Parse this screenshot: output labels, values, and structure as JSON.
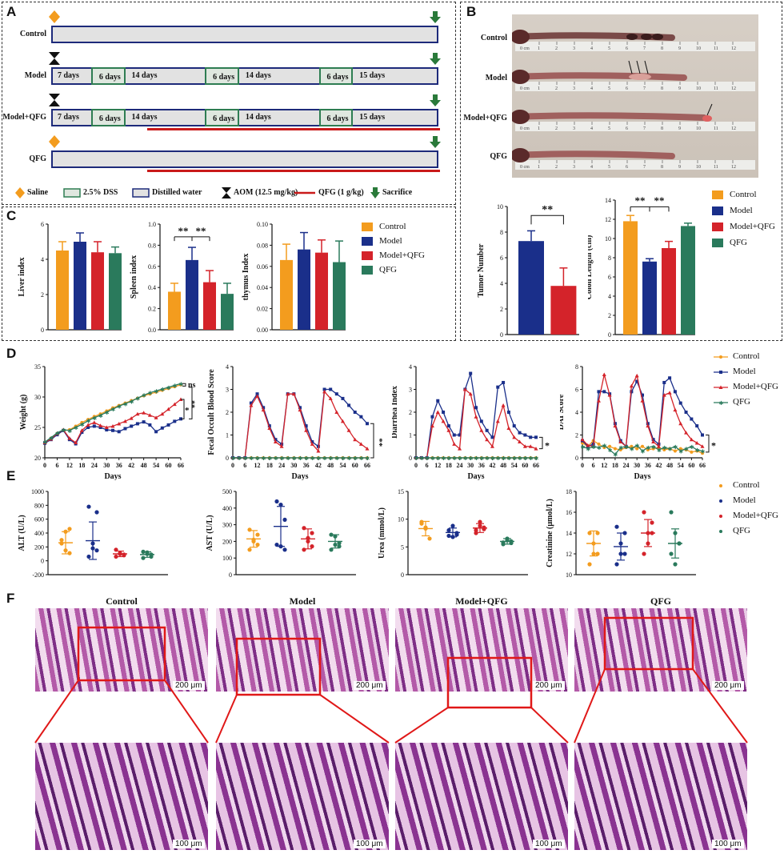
{
  "panels": {
    "A": "A",
    "B": "B",
    "C": "C",
    "D": "D",
    "E": "E",
    "F": "F"
  },
  "panelA": {
    "rows": [
      {
        "label": "Control",
        "segments": []
      },
      {
        "label": "Model",
        "segments": [
          "7 days",
          "6 days",
          "14 days",
          "6 days",
          "14 days",
          "6 days",
          "15 days"
        ]
      },
      {
        "label": "Model+QFG",
        "segments": [
          "7 days",
          "6 days",
          "14 days",
          "6 days",
          "14 days",
          "6 days",
          "15 days"
        ]
      },
      {
        "label": "QFG",
        "segments": []
      }
    ],
    "legend": [
      "Saline",
      "2.5% DSS",
      "Distilled water",
      "AOM (12.5 mg/kg)",
      "QFG (1 g/kg)",
      "Sacrifice"
    ]
  },
  "panelB": {
    "rows": [
      "Control",
      "Model",
      "Model+QFG",
      "QFG"
    ],
    "ruler_start": "0 cm",
    "ruler_ticks": [
      "1",
      "2",
      "3",
      "4",
      "5",
      "6",
      "7",
      "8",
      "9",
      "10",
      "11",
      "12"
    ]
  },
  "colors": {
    "Control": "#f39c1e",
    "Model": "#1a2f8a",
    "Model+QFG": "#d4232a",
    "QFG": "#2a7a5c"
  },
  "groups": [
    "Control",
    "Model",
    "Model+QFG",
    "QFG"
  ],
  "chart_data": [
    {
      "id": "tumor",
      "type": "bar",
      "categories": [
        "Model",
        "Model+QFG"
      ],
      "values": [
        7.3,
        3.8
      ],
      "errors": [
        0.8,
        1.4
      ],
      "ylabel": "Tumor Number",
      "ylim": [
        0,
        10
      ],
      "yticks": [
        0,
        2,
        4,
        6,
        8,
        10
      ],
      "annotations": [
        "**"
      ]
    },
    {
      "id": "colon",
      "type": "bar",
      "categories": [
        "Control",
        "Model",
        "Model+QFG",
        "QFG"
      ],
      "values": [
        11.8,
        7.6,
        9.0,
        11.3
      ],
      "errors": [
        0.6,
        0.3,
        0.7,
        0.3
      ],
      "ylabel": "Colon Length (cm)",
      "ylim": [
        0,
        14
      ],
      "yticks": [
        0,
        2,
        4,
        6,
        8,
        10,
        12,
        14
      ],
      "annotations": [
        "**",
        "**"
      ]
    },
    {
      "id": "liver",
      "type": "bar",
      "categories": [
        "Control",
        "Model",
        "Model+QFG",
        "QFG"
      ],
      "values": [
        4.5,
        5.0,
        4.4,
        4.35
      ],
      "errors": [
        0.5,
        0.5,
        0.6,
        0.35
      ],
      "ylabel": "Liver index",
      "ylim": [
        0,
        6
      ],
      "yticks": [
        0,
        2,
        4,
        6
      ]
    },
    {
      "id": "spleen",
      "type": "bar",
      "categories": [
        "Control",
        "Model",
        "Model+QFG",
        "QFG"
      ],
      "values": [
        0.36,
        0.66,
        0.45,
        0.34
      ],
      "errors": [
        0.08,
        0.12,
        0.11,
        0.1
      ],
      "ylabel": "Spleen index",
      "ylim": [
        0,
        1.0
      ],
      "yticks": [
        0.0,
        0.2,
        0.4,
        0.6,
        0.8,
        1.0
      ],
      "annotations": [
        "**",
        "**"
      ]
    },
    {
      "id": "thymus",
      "type": "bar",
      "categories": [
        "Control",
        "Model",
        "Model+QFG",
        "QFG"
      ],
      "values": [
        0.066,
        0.076,
        0.073,
        0.064
      ],
      "errors": [
        0.015,
        0.016,
        0.012,
        0.02
      ],
      "ylabel": "thymus Index",
      "ylim": [
        0,
        0.1
      ],
      "yticks": [
        0.0,
        0.02,
        0.04,
        0.06,
        0.08,
        0.1
      ]
    },
    {
      "id": "weight",
      "type": "line",
      "xlabel": "Days",
      "ylabel": "Weight (g)",
      "xlim": [
        0,
        66
      ],
      "ylim": [
        20,
        35
      ],
      "xticks": [
        0,
        6,
        12,
        18,
        24,
        30,
        36,
        42,
        48,
        54,
        60,
        66
      ],
      "yticks": [
        20,
        25,
        30,
        35
      ],
      "x": [
        0,
        3,
        6,
        9,
        12,
        15,
        18,
        21,
        24,
        27,
        30,
        33,
        36,
        39,
        42,
        45,
        48,
        51,
        54,
        57,
        60,
        63,
        66
      ],
      "series": [
        {
          "name": "Control",
          "values": [
            22.5,
            23.2,
            24.0,
            24.5,
            24.6,
            25.2,
            25.8,
            26.3,
            26.8,
            27.2,
            27.7,
            28.2,
            28.6,
            29.0,
            29.4,
            29.8,
            30.2,
            30.5,
            30.8,
            31.1,
            31.4,
            31.7,
            32.0
          ]
        },
        {
          "name": "Model",
          "values": [
            22.4,
            23.0,
            23.8,
            24.5,
            23.0,
            22.3,
            24.2,
            25.0,
            25.2,
            25.0,
            24.6,
            24.5,
            24.3,
            24.8,
            25.2,
            25.6,
            25.9,
            25.4,
            24.3,
            24.9,
            25.4,
            26.0,
            26.4
          ]
        },
        {
          "name": "Model+QFG",
          "values": [
            22.5,
            23.1,
            24.0,
            24.6,
            23.2,
            22.5,
            24.5,
            25.4,
            25.8,
            25.3,
            25.0,
            25.2,
            25.6,
            26.0,
            26.5,
            27.2,
            27.4,
            27.0,
            26.6,
            27.2,
            28.0,
            28.8,
            29.6
          ]
        },
        {
          "name": "QFG",
          "values": [
            22.6,
            23.3,
            24.1,
            24.6,
            24.5,
            25.0,
            25.5,
            26.1,
            26.6,
            27.0,
            27.5,
            28.0,
            28.5,
            28.9,
            29.3,
            29.8,
            30.3,
            30.7,
            31.0,
            31.3,
            31.6,
            31.9,
            32.2
          ]
        }
      ],
      "annotations": [
        "ns",
        "**",
        "*"
      ]
    },
    {
      "id": "fobs",
      "type": "line",
      "xlabel": "Days",
      "ylabel": "Fecal Occult Blood Score",
      "xlim": [
        0,
        66
      ],
      "ylim": [
        0,
        4
      ],
      "xticks": [
        0,
        6,
        12,
        18,
        24,
        30,
        36,
        42,
        48,
        54,
        60,
        66
      ],
      "yticks": [
        0,
        1,
        2,
        3,
        4
      ],
      "x": [
        0,
        3,
        6,
        9,
        12,
        15,
        18,
        21,
        24,
        27,
        30,
        33,
        36,
        39,
        42,
        45,
        48,
        51,
        54,
        57,
        60,
        63,
        66
      ],
      "series": [
        {
          "name": "Control",
          "values": [
            0,
            0,
            0,
            0,
            0,
            0,
            0,
            0,
            0,
            0,
            0,
            0,
            0,
            0,
            0,
            0,
            0,
            0,
            0,
            0,
            0,
            0,
            0
          ]
        },
        {
          "name": "Model",
          "values": [
            0,
            0,
            0,
            2.4,
            2.8,
            2.2,
            1.4,
            0.8,
            0.6,
            2.8,
            2.8,
            2.2,
            1.4,
            0.7,
            0.5,
            3.0,
            3.0,
            2.8,
            2.6,
            2.3,
            2.0,
            1.8,
            1.5
          ]
        },
        {
          "name": "Model+QFG",
          "values": [
            0,
            0,
            0,
            2.3,
            2.7,
            2.1,
            1.3,
            0.7,
            0.5,
            2.8,
            2.8,
            2.1,
            1.2,
            0.6,
            0.3,
            2.9,
            2.6,
            2.0,
            1.6,
            1.2,
            0.8,
            0.6,
            0.4
          ]
        },
        {
          "name": "QFG",
          "values": [
            0,
            0,
            0,
            0,
            0,
            0,
            0,
            0,
            0,
            0,
            0,
            0,
            0,
            0,
            0,
            0,
            0,
            0,
            0,
            0,
            0,
            0,
            0
          ]
        }
      ],
      "annotations": [
        "**"
      ]
    },
    {
      "id": "diarrhea",
      "type": "line",
      "xlabel": "Days",
      "ylabel": "Diarrhea Index",
      "xlim": [
        0,
        66
      ],
      "ylim": [
        0,
        4
      ],
      "xticks": [
        0,
        6,
        12,
        18,
        24,
        30,
        36,
        42,
        48,
        54,
        60,
        66
      ],
      "yticks": [
        0,
        1,
        2,
        3,
        4
      ],
      "x": [
        0,
        3,
        6,
        9,
        12,
        15,
        18,
        21,
        24,
        27,
        30,
        33,
        36,
        39,
        42,
        45,
        48,
        51,
        54,
        57,
        60,
        63,
        66
      ],
      "series": [
        {
          "name": "Control",
          "values": [
            0,
            0,
            0,
            0,
            0,
            0,
            0,
            0,
            0,
            0,
            0,
            0,
            0,
            0,
            0,
            0,
            0,
            0,
            0,
            0,
            0,
            0,
            0
          ]
        },
        {
          "name": "Model",
          "values": [
            0,
            0,
            0,
            1.8,
            2.5,
            2.0,
            1.4,
            1.0,
            1.0,
            3.0,
            3.7,
            2.2,
            1.6,
            1.2,
            0.9,
            3.1,
            3.3,
            2.0,
            1.4,
            1.1,
            1.0,
            0.9,
            0.9
          ]
        },
        {
          "name": "Model+QFG",
          "values": [
            0,
            0,
            0,
            1.4,
            2.0,
            1.6,
            1.2,
            0.6,
            0.4,
            3.0,
            2.8,
            1.8,
            1.2,
            0.8,
            0.5,
            1.6,
            2.3,
            1.3,
            0.9,
            0.7,
            0.5,
            0.5,
            0.4
          ]
        },
        {
          "name": "QFG",
          "values": [
            0,
            0,
            0,
            0,
            0,
            0,
            0,
            0,
            0,
            0,
            0,
            0,
            0,
            0,
            0,
            0,
            0,
            0,
            0,
            0,
            0,
            0,
            0
          ]
        }
      ],
      "annotations": [
        "*"
      ]
    },
    {
      "id": "dai",
      "type": "line",
      "xlabel": "Days",
      "ylabel": "DAI Score",
      "xlim": [
        0,
        66
      ],
      "ylim": [
        0,
        8
      ],
      "xticks": [
        0,
        6,
        12,
        18,
        24,
        30,
        36,
        42,
        48,
        54,
        60,
        66
      ],
      "yticks": [
        0,
        2,
        4,
        6,
        8
      ],
      "x": [
        0,
        3,
        6,
        9,
        12,
        15,
        18,
        21,
        24,
        27,
        30,
        33,
        36,
        39,
        42,
        45,
        48,
        51,
        54,
        57,
        60,
        63,
        66
      ],
      "series": [
        {
          "name": "Control",
          "values": [
            1.3,
            1.0,
            1.5,
            1.2,
            0.9,
            1.0,
            0.8,
            0.7,
            0.9,
            1.0,
            0.8,
            1.0,
            0.7,
            0.8,
            0.9,
            0.7,
            0.8,
            0.6,
            0.8,
            0.7,
            0.5,
            0.6,
            0.4
          ]
        },
        {
          "name": "Model",
          "values": [
            1.5,
            1.0,
            1.2,
            5.8,
            5.8,
            5.6,
            3.0,
            1.5,
            1.0,
            5.8,
            6.7,
            5.5,
            3.0,
            1.6,
            1.2,
            6.6,
            7.0,
            5.8,
            4.8,
            4.0,
            3.4,
            2.8,
            2.0
          ]
        },
        {
          "name": "Model+QFG",
          "values": [
            1.6,
            1.1,
            1.0,
            5.0,
            7.3,
            5.5,
            2.8,
            1.4,
            1.0,
            6.3,
            7.2,
            5.0,
            2.8,
            1.4,
            1.0,
            5.5,
            5.7,
            4.2,
            3.0,
            2.2,
            1.6,
            1.3,
            1.0
          ]
        },
        {
          "name": "QFG",
          "values": [
            1.0,
            0.8,
            1.0,
            0.9,
            1.1,
            0.7,
            0.3,
            0.9,
            1.0,
            0.8,
            1.1,
            0.6,
            0.9,
            1.0,
            0.7,
            0.9,
            0.8,
            1.0,
            0.6,
            0.8,
            1.0,
            0.7,
            0.6
          ]
        }
      ],
      "annotations": [
        "*"
      ]
    },
    {
      "id": "alt",
      "type": "scatter",
      "ylabel": "ALT (U/L)",
      "ylim": [
        -200,
        1000
      ],
      "yticks": [
        -200,
        0,
        200,
        400,
        600,
        800,
        1000
      ],
      "points": [
        [
          250,
          420,
          110,
          300,
          150,
          460
        ],
        [
          60,
          250,
          700,
          780,
          180,
          150
        ],
        [
          60,
          100,
          80,
          160,
          110,
          90
        ],
        [
          40,
          120,
          60,
          130,
          100,
          90
        ]
      ],
      "mean": [
        260,
        290,
        100,
        90
      ],
      "sd": [
        160,
        270,
        40,
        40
      ]
    },
    {
      "id": "ast",
      "type": "scatter",
      "ylabel": "AST (U/L)",
      "ylim": [
        0,
        500
      ],
      "yticks": [
        0,
        100,
        200,
        300,
        400,
        500
      ],
      "points": [
        [
          150,
          200,
          240,
          270,
          210,
          180
        ],
        [
          180,
          170,
          330,
          440,
          420,
          150
        ],
        [
          150,
          200,
          250,
          280,
          220,
          170
        ],
        [
          150,
          230,
          190,
          240,
          180,
          170
        ]
      ],
      "mean": [
        215,
        290,
        215,
        200
      ],
      "sd": [
        50,
        120,
        60,
        40
      ]
    },
    {
      "id": "urea",
      "type": "scatter",
      "ylabel": "Urea (mmol/L)",
      "ylim": [
        0,
        15
      ],
      "yticks": [
        0,
        5,
        10,
        15
      ],
      "points": [
        [
          9.5,
          8.5,
          6.5,
          9.2,
          8.3
        ],
        [
          7.0,
          8.8,
          7.5,
          8.0,
          6.8,
          7.2
        ],
        [
          8.0,
          9.5,
          8.5,
          7.5,
          8.8,
          8.2
        ],
        [
          5.5,
          6.5,
          6.0,
          5.8,
          6.2,
          5.7
        ]
      ],
      "mean": [
        8.3,
        7.6,
        8.4,
        6.0
      ],
      "sd": [
        1.3,
        0.8,
        0.8,
        0.5
      ]
    },
    {
      "id": "creatinine",
      "type": "scatter",
      "ylabel": "Creatinine (μmol/L)",
      "ylim": [
        10,
        18
      ],
      "yticks": [
        10,
        12,
        14,
        16,
        18
      ],
      "points": [
        [
          14,
          13,
          12,
          11,
          12,
          14
        ],
        [
          14.6,
          13,
          12,
          11,
          12,
          14
        ],
        [
          16,
          14,
          14,
          12,
          13,
          15
        ],
        [
          16,
          14,
          13,
          12,
          11,
          13
        ]
      ],
      "mean": [
        13,
        12.7,
        14,
        13
      ],
      "sd": [
        1.2,
        1.3,
        1.3,
        1.4
      ]
    }
  ],
  "panelF": {
    "titles": [
      "Control",
      "Model",
      "Model+QFG",
      "QFG"
    ],
    "scale_top": "200 μm",
    "scale_bottom": "100 μm"
  },
  "axes": {
    "days": "Days"
  },
  "sig": {
    "ns": "ns",
    "star": "*",
    "dstar": "**",
    "vdstar": "* *"
  }
}
